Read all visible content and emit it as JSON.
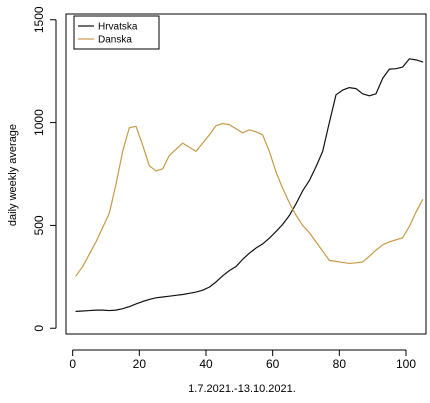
{
  "chart_data": {
    "type": "line",
    "title": "",
    "xlabel": "1.7.2021.-13.10.2021.",
    "ylabel": "daily weekly average",
    "xlim": [
      -2,
      106
    ],
    "ylim": [
      -28,
      1528
    ],
    "x_ticks": [
      {
        "value": 0,
        "label": "0"
      },
      {
        "value": 20,
        "label": "20"
      },
      {
        "value": 40,
        "label": "40"
      },
      {
        "value": 60,
        "label": "60"
      },
      {
        "value": 80,
        "label": "80"
      },
      {
        "value": 100,
        "label": "100"
      }
    ],
    "y_ticks": [
      {
        "value": 0,
        "label": "0"
      },
      {
        "value": 500,
        "label": "500"
      },
      {
        "value": 1000,
        "label": "1000"
      },
      {
        "value": 1500,
        "label": "1500"
      }
    ],
    "grid": false,
    "legend": {
      "position": "top-left",
      "entries": [
        {
          "name": "Hrvatska",
          "color": "#111111"
        },
        {
          "name": "Danska",
          "color": "#c79a48"
        }
      ]
    },
    "series": [
      {
        "name": "Hrvatska",
        "color": "#111111",
        "x": [
          1,
          3,
          5,
          7,
          9,
          11,
          13,
          15,
          17,
          19,
          21,
          23,
          25,
          27,
          29,
          31,
          33,
          35,
          37,
          39,
          41,
          43,
          45,
          47,
          49,
          51,
          53,
          55,
          57,
          59,
          61,
          63,
          65,
          67,
          69,
          71,
          73,
          75,
          77,
          79,
          81,
          83,
          85,
          87,
          89,
          91,
          93,
          95,
          97,
          99,
          101,
          103,
          105
        ],
        "y": [
          82,
          84,
          86,
          88,
          88,
          86,
          88,
          95,
          105,
          118,
          130,
          140,
          148,
          152,
          156,
          160,
          164,
          170,
          176,
          185,
          200,
          225,
          255,
          280,
          300,
          335,
          365,
          390,
          410,
          438,
          470,
          505,
          548,
          605,
          668,
          718,
          785,
          860,
          1000,
          1135,
          1158,
          1170,
          1165,
          1140,
          1130,
          1140,
          1215,
          1260,
          1262,
          1270,
          1310,
          1305,
          1295
        ]
      },
      {
        "name": "Danska",
        "color": "#c79a48",
        "x": [
          1,
          3,
          5,
          7,
          9,
          11,
          13,
          15,
          17,
          19,
          21,
          23,
          25,
          27,
          29,
          31,
          33,
          35,
          37,
          39,
          41,
          43,
          45,
          47,
          49,
          51,
          53,
          55,
          57,
          59,
          61,
          63,
          65,
          67,
          69,
          71,
          73,
          75,
          77,
          79,
          81,
          83,
          85,
          87,
          89,
          91,
          93,
          95,
          97,
          99,
          101,
          103,
          105
        ],
        "y": [
          255,
          300,
          360,
          420,
          490,
          560,
          700,
          860,
          975,
          982,
          890,
          790,
          765,
          775,
          840,
          870,
          900,
          880,
          860,
          900,
          940,
          985,
          995,
          990,
          970,
          950,
          965,
          955,
          940,
          860,
          760,
          680,
          610,
          550,
          500,
          465,
          420,
          375,
          330,
          325,
          320,
          315,
          318,
          322,
          350,
          380,
          405,
          420,
          430,
          440,
          495,
          565,
          625
        ]
      }
    ]
  }
}
